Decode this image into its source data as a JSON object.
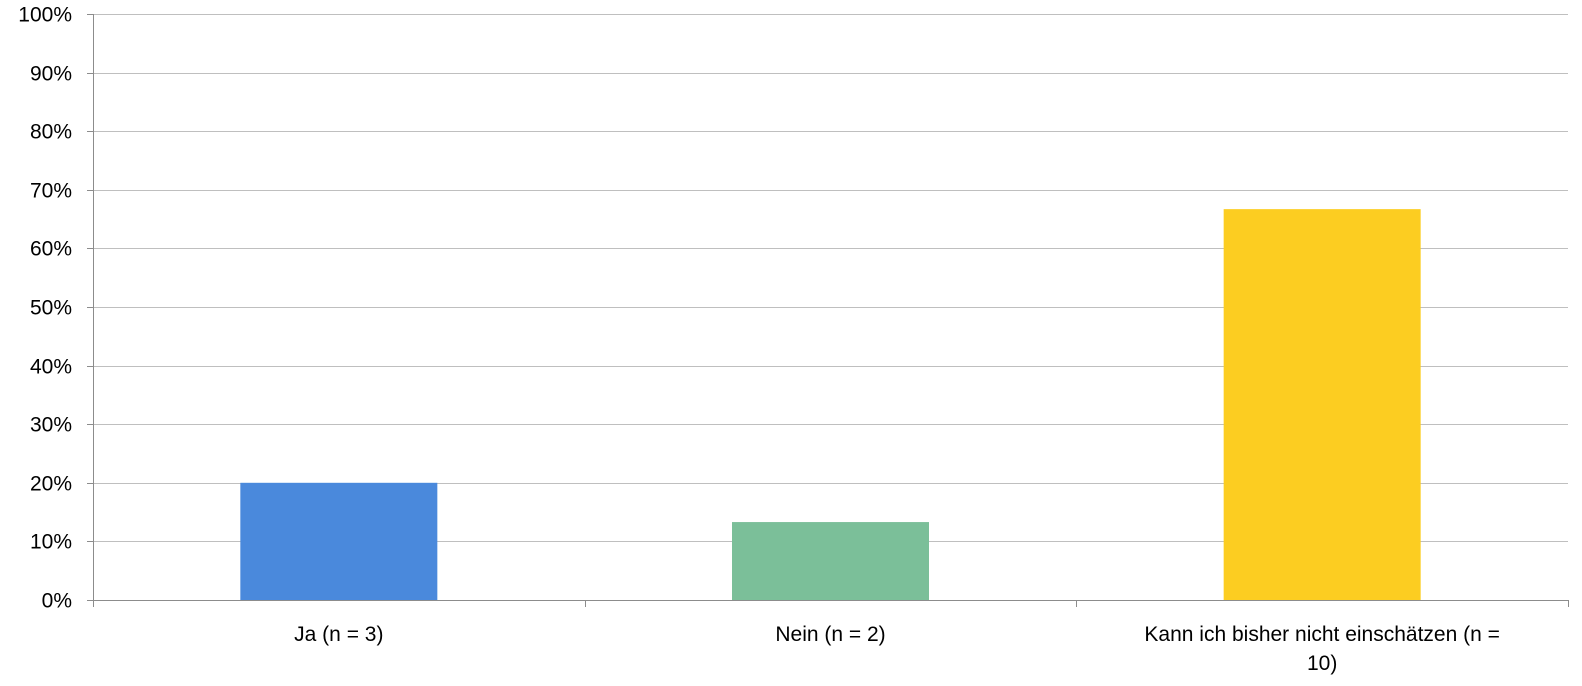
{
  "chart_data": {
    "type": "bar",
    "categories": [
      [
        "Ja (n = 3)"
      ],
      [
        "Nein (n = 2)"
      ],
      [
        "Kann ich bisher nicht einschätzen (n =",
        "10)"
      ]
    ],
    "values": [
      20,
      13.3,
      66.7
    ],
    "colors": [
      "#4A89DC",
      "#7BBF99",
      "#FCCD21"
    ],
    "ylim": [
      0,
      100
    ],
    "yticks": [
      0,
      10,
      20,
      30,
      40,
      50,
      60,
      70,
      80,
      90,
      100
    ],
    "ytick_labels": [
      "0%",
      "10%",
      "20%",
      "30%",
      "40%",
      "50%",
      "60%",
      "70%",
      "80%",
      "90%",
      "100%"
    ],
    "grid": true,
    "legend": "none",
    "title": "",
    "xlabel": "",
    "ylabel": ""
  }
}
